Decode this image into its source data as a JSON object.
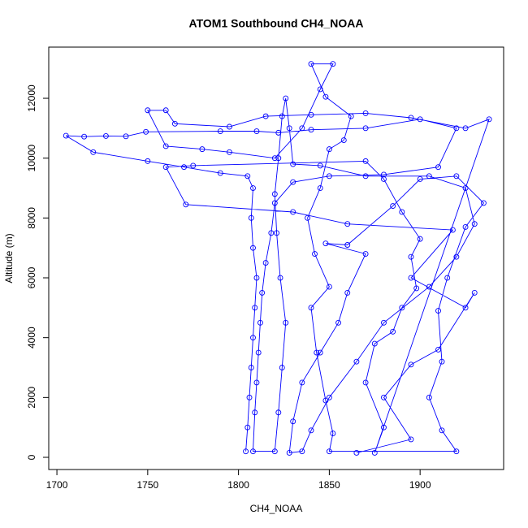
{
  "chart_data": {
    "type": "line",
    "title": "ATOM1 Southbound CH4_NOAA",
    "x_label": "CH4_NOAA",
    "y_label": "Altitude (m)",
    "color": "#0000ff",
    "markers": true,
    "x": [
      1804,
      1805,
      1806,
      1807,
      1808,
      1809,
      1810,
      1808,
      1807,
      1808,
      1805,
      1790,
      1770,
      1750,
      1720,
      1705,
      1715,
      1727,
      1738,
      1749,
      1790,
      1810,
      1822,
      1840,
      1870,
      1900,
      1920,
      1910,
      1880,
      1850,
      1830,
      1820,
      1818,
      1815,
      1813,
      1812,
      1811,
      1810,
      1809,
      1808,
      1820,
      1822,
      1824,
      1826,
      1823,
      1821,
      1820,
      1822,
      1824,
      1826,
      1828,
      1830,
      1845,
      1870,
      1905,
      1925,
      1930,
      1920,
      1905,
      1880,
      1865,
      1850,
      1840,
      1835,
      1828,
      1830,
      1835,
      1845,
      1855,
      1860,
      1870,
      1848,
      1860,
      1885,
      1900,
      1920,
      1935,
      1925,
      1915,
      1910,
      1912,
      1905,
      1912,
      1920,
      1850,
      1852,
      1848,
      1843,
      1840,
      1850,
      1842,
      1838,
      1845,
      1850,
      1858,
      1862,
      1848,
      1840,
      1852,
      1845,
      1835,
      1820,
      1795,
      1780,
      1760,
      1750,
      1760,
      1765,
      1795,
      1815,
      1840,
      1870,
      1895,
      1925,
      1938,
      1875,
      1880,
      1870,
      1875,
      1885,
      1890,
      1898,
      1895,
      1900,
      1890,
      1880,
      1870,
      1775,
      1760,
      1771,
      1830,
      1860,
      1918,
      1895,
      1925,
      1930,
      1910,
      1895,
      1880,
      1895,
      1865
    ],
    "values": [
      200,
      1000,
      2000,
      3000,
      4000,
      5000,
      6000,
      7000,
      8000,
      9000,
      9400,
      9500,
      9700,
      9900,
      10200,
      10750,
      10720,
      10740,
      10730,
      10880,
      10900,
      10900,
      10850,
      10950,
      11000,
      11300,
      11000,
      9700,
      9450,
      9400,
      9200,
      8500,
      7500,
      6500,
      5500,
      4500,
      3500,
      2500,
      1500,
      200,
      200,
      1500,
      3000,
      4500,
      6000,
      7500,
      8800,
      10000,
      11400,
      12000,
      11000,
      9800,
      9750,
      9400,
      9400,
      9000,
      7800,
      6700,
      5700,
      4500,
      3200,
      2000,
      900,
      200,
      150,
      1200,
      2500,
      3500,
      4500,
      5500,
      6800,
      7150,
      7100,
      8400,
      9300,
      9400,
      8500,
      7700,
      6000,
      4900,
      3200,
      2000,
      900,
      200,
      200,
      800,
      1900,
      3500,
      5000,
      5700,
      6800,
      8000,
      9000,
      10300,
      10600,
      11400,
      12050,
      13150,
      13150,
      12300,
      11000,
      10000,
      10200,
      10300,
      10400,
      11600,
      11600,
      11150,
      11050,
      11400,
      11450,
      11500,
      11350,
      11000,
      11300,
      150,
      1000,
      2500,
      3800,
      4200,
      5000,
      5650,
      6700,
      7300,
      8200,
      9300,
      9900,
      9750,
      9700,
      8450,
      8200,
      7800,
      7600,
      6000,
      5000,
      5500,
      3600,
      3100,
      2000,
      600,
      150
    ],
    "xlim": [
      1695.5,
      1946
    ],
    "ylim": [
      -407,
      13711
    ],
    "xticks": [
      1700,
      1750,
      1800,
      1850,
      1900
    ],
    "yticks": [
      0,
      2000,
      4000,
      6000,
      8000,
      10000,
      12000
    ]
  }
}
